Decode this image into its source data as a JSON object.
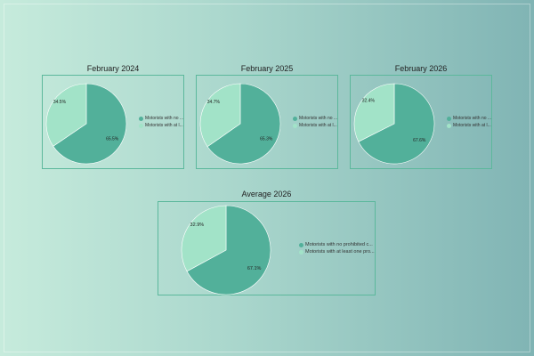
{
  "colors": {
    "primary": "#52b09a",
    "secondary": "#a2e3c8"
  },
  "chart_data": [
    {
      "type": "pie",
      "title": "February 2024",
      "labels": [
        "Motorists with no ...",
        "Motorists with at l..."
      ],
      "values": [
        65.5,
        34.5
      ],
      "value_labels": [
        "65.5%",
        "34.5%"
      ]
    },
    {
      "type": "pie",
      "title": "February 2025",
      "labels": [
        "Motorists with no ...",
        "Motorists with at l..."
      ],
      "values": [
        65.3,
        34.7
      ],
      "value_labels": [
        "65.3%",
        "34.7%"
      ]
    },
    {
      "type": "pie",
      "title": "February 2026",
      "labels": [
        "Motorists with no ...",
        "Motorists with at l..."
      ],
      "values": [
        67.6,
        32.4
      ],
      "value_labels": [
        "67.6%",
        "32.4%"
      ]
    },
    {
      "type": "pie",
      "title": "Average 2026",
      "labels": [
        "Motorists with no prohibited c...",
        "Motorists with at least one pro..."
      ],
      "values": [
        67.1,
        32.9
      ],
      "value_labels": [
        "67.1%",
        "32.9%"
      ]
    }
  ]
}
